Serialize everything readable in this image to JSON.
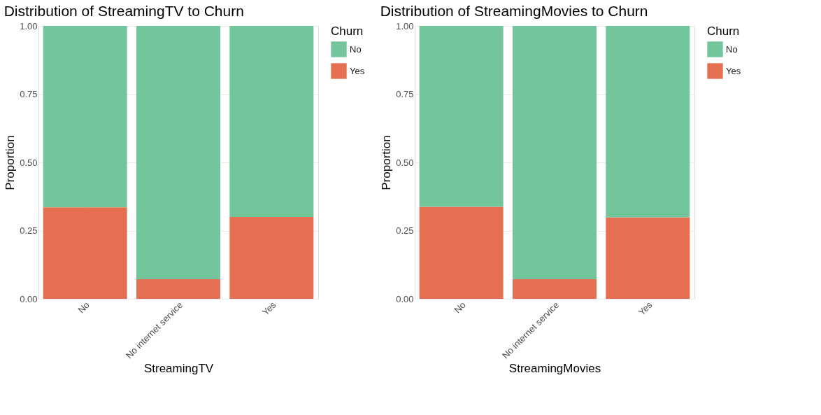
{
  "chart_data": [
    {
      "type": "bar",
      "title": "Distribution of StreamingTV to Churn",
      "xlabel": "StreamingTV",
      "ylabel": "Proportion",
      "legend_title": "Churn",
      "categories": [
        "No",
        "No internet service",
        "Yes"
      ],
      "stacked": true,
      "series": [
        {
          "name": "Yes",
          "color": "#e46f51",
          "values": [
            0.335,
            0.072,
            0.3
          ]
        },
        {
          "name": "No",
          "color": "#73c59b",
          "values": [
            0.665,
            0.928,
            0.7
          ]
        }
      ],
      "ylim": [
        0,
        1
      ],
      "yticks": [
        {
          "value": 0,
          "label": "0.00"
        },
        {
          "value": 0.25,
          "label": "0.25"
        },
        {
          "value": 0.5,
          "label": "0.50"
        },
        {
          "value": 0.75,
          "label": "0.75"
        },
        {
          "value": 1,
          "label": "1.00"
        }
      ],
      "grid": true,
      "legend": "right"
    },
    {
      "type": "bar",
      "title": "Distribution of StreamingMovies to Churn",
      "xlabel": "StreamingMovies",
      "ylabel": "Proportion",
      "legend_title": "Churn",
      "categories": [
        "No",
        "No internet service",
        "Yes"
      ],
      "stacked": true,
      "series": [
        {
          "name": "Yes",
          "color": "#e46f51",
          "values": [
            0.337,
            0.072,
            0.299
          ]
        },
        {
          "name": "No",
          "color": "#73c59b",
          "values": [
            0.663,
            0.928,
            0.701
          ]
        }
      ],
      "ylim": [
        0,
        1
      ],
      "yticks": [
        {
          "value": 0,
          "label": "0.00"
        },
        {
          "value": 0.25,
          "label": "0.25"
        },
        {
          "value": 0.5,
          "label": "0.50"
        },
        {
          "value": 0.75,
          "label": "0.75"
        },
        {
          "value": 1,
          "label": "1.00"
        }
      ],
      "grid": true,
      "legend": "right"
    }
  ]
}
